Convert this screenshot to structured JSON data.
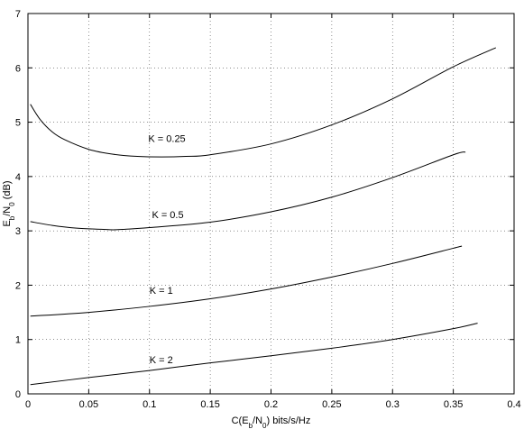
{
  "chart_data": {
    "type": "line",
    "title": "",
    "xlabel": "C(E_b/N_0) bits/s/Hz",
    "ylabel": "E_b/N_0 (dB)",
    "xlim": [
      0,
      0.4
    ],
    "ylim": [
      0,
      7
    ],
    "xticks": [
      0,
      0.05,
      0.1,
      0.15,
      0.2,
      0.25,
      0.3,
      0.35,
      0.4
    ],
    "yticks": [
      0,
      1,
      2,
      3,
      4,
      5,
      6,
      7
    ],
    "xtick_labels": [
      "0",
      "0.05",
      "0.1",
      "0.15",
      "0.2",
      "0.25",
      "0.3",
      "0.35",
      "0.4"
    ],
    "ytick_labels": [
      "0",
      "1",
      "2",
      "3",
      "4",
      "5",
      "6",
      "7"
    ],
    "grid": true,
    "series": [
      {
        "x": [
          0.002,
          0.01,
          0.02,
          0.03,
          0.05,
          0.07,
          0.09,
          0.11,
          0.13,
          0.15,
          0.2,
          0.25,
          0.3,
          0.35,
          0.385
        ],
        "y": [
          5.33,
          5.05,
          4.82,
          4.68,
          4.5,
          4.41,
          4.37,
          4.36,
          4.37,
          4.4,
          4.6,
          4.95,
          5.43,
          6.02,
          6.37
        ]
      },
      {
        "x": [
          0.002,
          0.02,
          0.04,
          0.06,
          0.07,
          0.08,
          0.1,
          0.15,
          0.2,
          0.25,
          0.3,
          0.35,
          0.36
        ],
        "y": [
          3.17,
          3.1,
          3.05,
          3.03,
          3.02,
          3.03,
          3.06,
          3.16,
          3.35,
          3.62,
          3.98,
          4.4,
          4.45
        ]
      },
      {
        "x": [
          0.002,
          0.05,
          0.1,
          0.15,
          0.2,
          0.25,
          0.3,
          0.35,
          0.357
        ],
        "y": [
          1.43,
          1.5,
          1.61,
          1.75,
          1.93,
          2.15,
          2.4,
          2.68,
          2.72
        ]
      },
      {
        "x": [
          0.002,
          0.05,
          0.1,
          0.15,
          0.2,
          0.25,
          0.3,
          0.35,
          0.37
        ],
        "y": [
          0.17,
          0.3,
          0.43,
          0.57,
          0.7,
          0.84,
          1.0,
          1.2,
          1.3
        ]
      }
    ],
    "annotations": [
      {
        "text": "K = 0.25",
        "x": 0.099,
        "y": 4.7
      },
      {
        "text": "K = 0.5",
        "x": 0.102,
        "y": 3.3
      },
      {
        "text": "K = 1",
        "x": 0.1,
        "y": 1.91
      },
      {
        "text": "K = 2",
        "x": 0.1,
        "y": 0.63
      }
    ]
  }
}
